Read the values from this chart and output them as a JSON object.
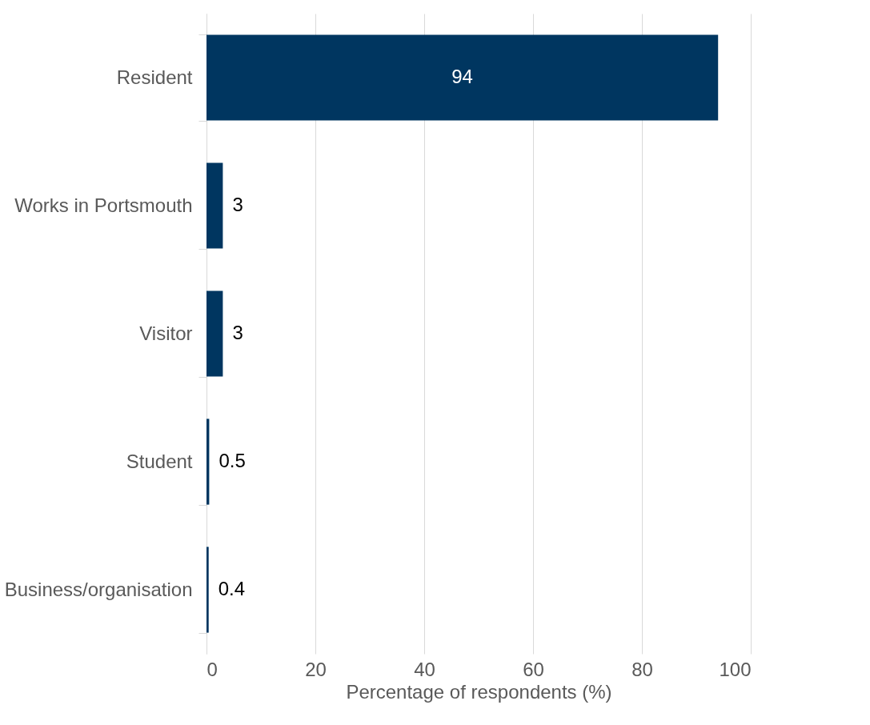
{
  "chart_data": {
    "type": "bar",
    "orientation": "horizontal",
    "xlabel": "Percentage of respondents (%)",
    "categories": [
      "Resident",
      "Works in Portsmouth",
      "Visitor",
      "Student",
      "Business/organisation"
    ],
    "values": [
      94,
      3,
      3,
      0.5,
      0.4
    ],
    "color": "#003660",
    "xlim": [
      0,
      100
    ],
    "xticks": [
      0,
      20,
      40,
      60,
      80,
      100
    ],
    "grid": "x",
    "data_labels": true
  }
}
